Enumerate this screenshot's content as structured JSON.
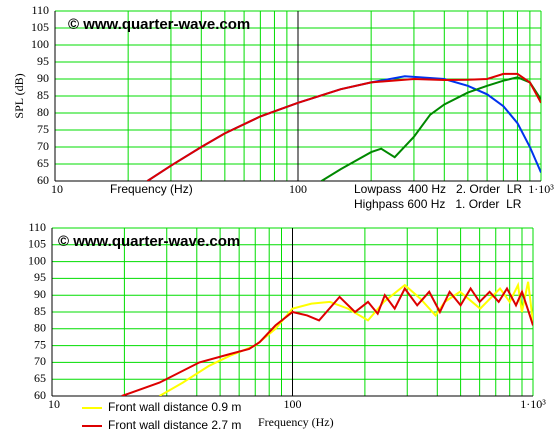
{
  "chart_data": [
    {
      "type": "line",
      "xscale": "log",
      "grid": true,
      "grid_color": "#00dd00",
      "watermark": "© www.quarter-wave.com",
      "ylabel": "SPL (dB)",
      "xlabel": "Frequency (Hz)",
      "annotations": [
        "Lowpass  400 Hz   2. Order  LR",
        "Highpass 600 Hz   1. Order  LR"
      ],
      "xlim": [
        10,
        1000
      ],
      "xticks": [
        10,
        100,
        {
          "value": 1000,
          "label": "1·10³"
        }
      ],
      "ylim": [
        60,
        110
      ],
      "yticks": [
        60,
        65,
        70,
        75,
        80,
        85,
        90,
        95,
        100,
        105,
        110
      ],
      "series": [
        {
          "color": "#0033ee",
          "x": [
            24,
            30,
            40,
            50,
            70,
            100,
            150,
            200,
            275,
            400,
            500,
            600,
            700,
            800,
            900,
            1000
          ],
          "values": [
            60,
            64.5,
            70,
            74,
            79,
            83,
            87,
            89,
            90.8,
            90,
            88,
            85.5,
            82,
            77,
            70,
            62.5
          ]
        },
        {
          "color": "#008800",
          "x": [
            125,
            150,
            200,
            220,
            250,
            300,
            350,
            400,
            500,
            600,
            700,
            800,
            900,
            1000
          ],
          "values": [
            60,
            63.5,
            68.5,
            69.5,
            67,
            73,
            79.5,
            82.5,
            86,
            88,
            89.5,
            90.5,
            89,
            84
          ]
        },
        {
          "color": "#dd0000",
          "x": [
            24,
            30,
            40,
            50,
            70,
            100,
            150,
            200,
            300,
            400,
            500,
            600,
            700,
            800,
            900,
            1000
          ],
          "values": [
            60,
            64.5,
            70,
            74,
            79,
            83,
            87,
            89,
            90,
            89.7,
            89.8,
            90,
            91.5,
            91.5,
            89,
            83
          ]
        }
      ]
    },
    {
      "type": "line",
      "xscale": "log",
      "grid": true,
      "grid_color": "#00dd00",
      "watermark": "© www.quarter-wave.com",
      "xlabel": "Frequency (Hz)",
      "xlim": [
        10,
        1000
      ],
      "xticks": [
        10,
        100,
        {
          "value": 1000,
          "label": "1·10³"
        }
      ],
      "ylim": [
        60,
        110
      ],
      "yticks": [
        60,
        65,
        70,
        75,
        80,
        85,
        90,
        95,
        100,
        105,
        110
      ],
      "series": [
        {
          "name": "Front wall distance 0.9 m",
          "color": "#ffff00",
          "x": [
            28,
            35,
            45,
            55,
            70,
            85,
            100,
            120,
            143,
            170,
            206,
            240,
            293,
            340,
            393,
            430,
            497,
            603,
            729,
            800,
            866,
            899,
            954,
            1000
          ],
          "values": [
            60,
            64,
            69,
            72,
            75,
            80,
            86,
            87.5,
            88,
            86,
            82.5,
            88,
            93,
            89,
            84,
            88,
            91,
            86,
            92,
            88,
            93,
            85,
            94,
            82
          ]
        },
        {
          "name": "Front wall distance 2.7 m",
          "color": "#dd0000",
          "x": [
            19.5,
            28,
            41,
            55,
            66,
            73,
            85,
            100,
            115,
            129,
            157,
            182,
            206,
            226,
            242,
            266,
            293,
            330,
            370,
            410,
            450,
            500,
            550,
            600,
            660,
            720,
            780,
            850,
            900,
            950,
            1000
          ],
          "values": [
            60,
            64,
            70,
            72.5,
            74,
            76,
            81,
            85,
            84,
            82.5,
            89.5,
            85,
            88,
            84.5,
            90,
            86,
            92,
            87,
            91,
            85,
            91,
            87,
            92,
            88,
            91,
            88,
            92,
            87,
            91,
            86,
            81
          ]
        }
      ]
    }
  ]
}
